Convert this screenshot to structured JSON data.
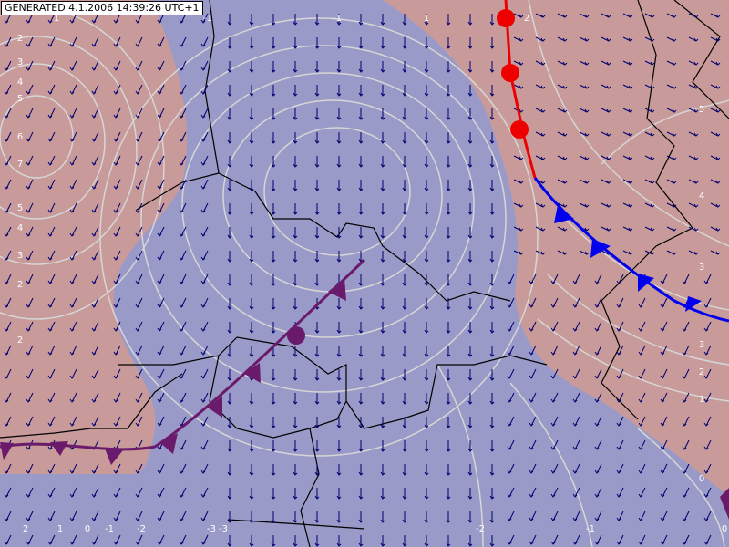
{
  "header": {
    "text": "GENERATED 4.1.2006 14:39:26 UTC+1"
  },
  "isobar_labels": [
    1,
    -1,
    -1,
    1,
    2,
    2,
    3,
    4,
    5,
    6,
    7,
    5,
    4,
    3,
    2,
    2,
    2,
    1,
    0,
    -1,
    -2,
    -3,
    -3,
    -2,
    -1,
    0,
    5,
    4,
    3,
    3,
    2,
    1,
    0
  ]
}
